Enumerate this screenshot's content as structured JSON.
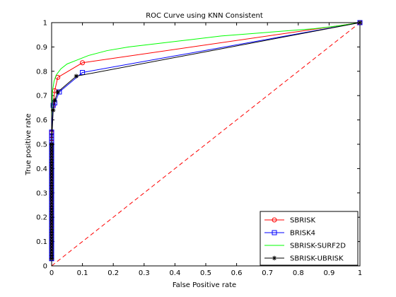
{
  "chart_data": {
    "type": "line",
    "title": "ROC Curve using KNN Consistent",
    "xlabel": "False Positive rate",
    "ylabel": "True positive rate",
    "xlim": [
      0,
      1
    ],
    "ylim": [
      0,
      1
    ],
    "xticks": [
      "0",
      "0.1",
      "0.2",
      "0.3",
      "0.4",
      "0.5",
      "0.6",
      "0.7",
      "0.8",
      "0.9",
      "1"
    ],
    "yticks": [
      "0",
      "0.1",
      "0.2",
      "0.3",
      "0.4",
      "0.5",
      "0.6",
      "0.7",
      "0.8",
      "0.9",
      "1"
    ],
    "grid": false,
    "legend_position": "bottom-right",
    "series": [
      {
        "name": "SBRISK",
        "color": "#ff0000",
        "marker": "circle",
        "x": [
          0,
          0,
          0.005,
          0.01,
          0.02,
          0.1,
          1
        ],
        "y": [
          0.03,
          0.55,
          0.66,
          0.72,
          0.775,
          0.835,
          1
        ]
      },
      {
        "name": "BRISK4",
        "color": "#0000ff",
        "marker": "square",
        "x": [
          0,
          0,
          0.005,
          0.01,
          0.025,
          0.1,
          1
        ],
        "y": [
          0.03,
          0.55,
          0.66,
          0.67,
          0.715,
          0.795,
          1
        ]
      },
      {
        "name": "SBRISK-SURF2D",
        "color": "#00ff00",
        "marker": "none",
        "x": [
          0,
          0.003,
          0.008,
          0.015,
          0.03,
          0.05,
          0.08,
          0.12,
          0.18,
          0.25,
          0.35,
          0.45,
          0.55,
          0.65,
          0.75,
          0.85,
          0.92,
          1
        ],
        "y": [
          0.6,
          0.72,
          0.76,
          0.785,
          0.81,
          0.83,
          0.845,
          0.865,
          0.885,
          0.9,
          0.915,
          0.93,
          0.945,
          0.955,
          0.965,
          0.975,
          0.985,
          1
        ]
      },
      {
        "name": "SBRISK-UBRISK",
        "color": "#000000",
        "marker": "star",
        "x": [
          0,
          0,
          0.005,
          0.01,
          0.02,
          0.08,
          1
        ],
        "y": [
          0.03,
          0.5,
          0.64,
          0.68,
          0.715,
          0.78,
          1
        ]
      }
    ],
    "reference_line": {
      "color": "#ff0000",
      "style": "dashed",
      "x": [
        0,
        1
      ],
      "y": [
        0,
        1
      ]
    }
  }
}
